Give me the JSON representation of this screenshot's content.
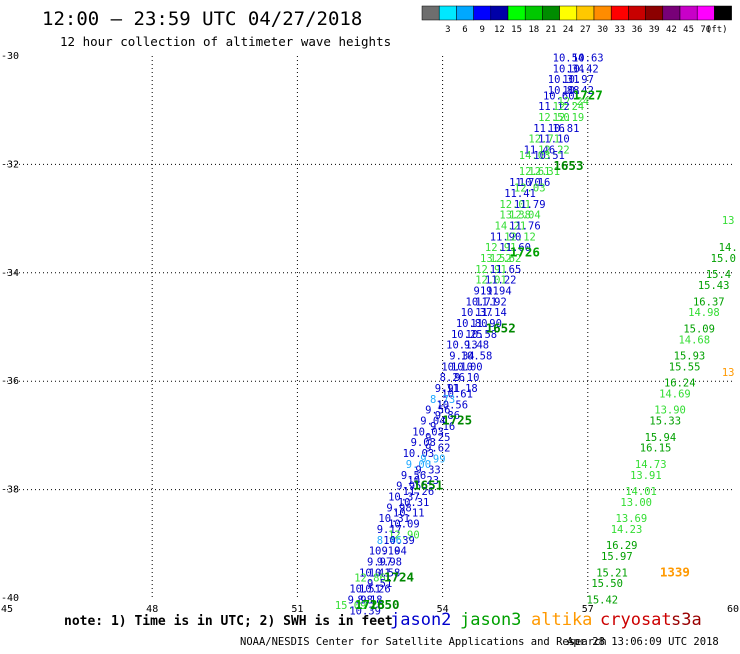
{
  "header": {
    "title": "12:00 – 23:59 UTC 04/27/2018",
    "subtitle": "12 hour collection of altimeter wave heights"
  },
  "color_scale": {
    "unit": "(ft)",
    "bins": [
      {
        "color": "#6e6e6e",
        "label": ""
      },
      {
        "color": "#00e8ff",
        "label": "3"
      },
      {
        "color": "#00a8ff",
        "label": "6"
      },
      {
        "color": "#0000ff",
        "label": "9"
      },
      {
        "color": "#0000a8",
        "label": "12"
      },
      {
        "color": "#00ff00",
        "label": "15"
      },
      {
        "color": "#00c800",
        "label": "18"
      },
      {
        "color": "#008c00",
        "label": "21"
      },
      {
        "color": "#ffff00",
        "label": "24"
      },
      {
        "color": "#ffc800",
        "label": "27"
      },
      {
        "color": "#ff8c00",
        "label": "30"
      },
      {
        "color": "#ff0000",
        "label": "33"
      },
      {
        "color": "#c80000",
        "label": "36"
      },
      {
        "color": "#8c0000",
        "label": "39"
      },
      {
        "color": "#780078",
        "label": "42"
      },
      {
        "color": "#c800c8",
        "label": "45"
      },
      {
        "color": "#ff00ff",
        "label": "70"
      },
      {
        "color": "#000000",
        "label": ""
      }
    ]
  },
  "footer": {
    "note": "note: 1) Time is in UTC; 2) SWH is in feet",
    "credit": "NOAA/NESDIS Center for Satellite Applications and Research",
    "timestamp": "Apr 28 13:06:09 UTC 2018"
  },
  "satellites": [
    {
      "name": "jason2",
      "color": "#0000cc"
    },
    {
      "name": "jason3",
      "color": "#00a000"
    },
    {
      "name": "altika",
      "color": "#ff9900"
    },
    {
      "name": "cryosat",
      "color": "#cc0000"
    },
    {
      "name": "s3a",
      "color": "#990000"
    }
  ],
  "chart_data": {
    "type": "scatter",
    "title": "12:00 – 23:59 UTC 04/27/2018",
    "subtitle": "12 hour collection of altimeter wave heights",
    "xlabel": "",
    "ylabel": "",
    "xlim": [
      45,
      60
    ],
    "ylim": [
      -40,
      -30
    ],
    "xticks": [
      45,
      48,
      51,
      54,
      57,
      60
    ],
    "yticks": [
      -30,
      -32,
      -34,
      -36,
      -38,
      -40
    ],
    "grid": true,
    "swh_labels": [
      {
        "lon": 56.6,
        "lat": -30.1,
        "text": "10.54",
        "color": "#0000cc"
      },
      {
        "lon": 57.0,
        "lat": -30.1,
        "text": "10.63",
        "color": "#0000cc"
      },
      {
        "lon": 56.6,
        "lat": -30.3,
        "text": "10.34",
        "color": "#0000cc"
      },
      {
        "lon": 56.9,
        "lat": -30.3,
        "text": "10.42",
        "color": "#0000cc"
      },
      {
        "lon": 56.5,
        "lat": -30.5,
        "text": "10.31",
        "color": "#0000cc"
      },
      {
        "lon": 56.8,
        "lat": -30.5,
        "text": "10.97",
        "color": "#0000cc"
      },
      {
        "lon": 56.5,
        "lat": -30.7,
        "text": "10.88",
        "color": "#0000cc"
      },
      {
        "lon": 56.8,
        "lat": -30.7,
        "text": "10.42",
        "color": "#0000cc"
      },
      {
        "lon": 56.4,
        "lat": -30.8,
        "text": "10.60",
        "color": "#0000cc"
      },
      {
        "lon": 56.7,
        "lat": -30.9,
        "text": "12.24",
        "color": "#33dd33"
      },
      {
        "lon": 56.3,
        "lat": -31.0,
        "text": "11.12",
        "color": "#0000cc"
      },
      {
        "lon": 56.6,
        "lat": -31.0,
        "text": "12.24",
        "color": "#33dd33"
      },
      {
        "lon": 56.3,
        "lat": -31.2,
        "text": "12.50",
        "color": "#33dd33"
      },
      {
        "lon": 56.6,
        "lat": -31.2,
        "text": "12.19",
        "color": "#33dd33"
      },
      {
        "lon": 56.2,
        "lat": -31.4,
        "text": "11.16",
        "color": "#0000cc"
      },
      {
        "lon": 56.5,
        "lat": -31.4,
        "text": "10.81",
        "color": "#0000cc"
      },
      {
        "lon": 56.1,
        "lat": -31.6,
        "text": "12.71",
        "color": "#33dd33"
      },
      {
        "lon": 56.3,
        "lat": -31.6,
        "text": "11.10",
        "color": "#0000cc"
      },
      {
        "lon": 56.0,
        "lat": -31.8,
        "text": "11.46",
        "color": "#0000cc"
      },
      {
        "lon": 56.3,
        "lat": -31.8,
        "text": "12.22",
        "color": "#33dd33"
      },
      {
        "lon": 55.9,
        "lat": -31.9,
        "text": "14.03",
        "color": "#33dd33"
      },
      {
        "lon": 56.2,
        "lat": -31.9,
        "text": "10.51",
        "color": "#0000cc"
      },
      {
        "lon": 55.9,
        "lat": -32.2,
        "text": "12.61",
        "color": "#33dd33"
      },
      {
        "lon": 56.1,
        "lat": -32.2,
        "text": "12.31",
        "color": "#33dd33"
      },
      {
        "lon": 55.7,
        "lat": -32.4,
        "text": "11.70",
        "color": "#0000cc"
      },
      {
        "lon": 55.9,
        "lat": -32.4,
        "text": "10.16",
        "color": "#0000cc"
      },
      {
        "lon": 55.6,
        "lat": -32.6,
        "text": "11.41",
        "color": "#0000cc"
      },
      {
        "lon": 55.8,
        "lat": -32.5,
        "text": "12.03",
        "color": "#33dd33"
      },
      {
        "lon": 55.5,
        "lat": -32.8,
        "text": "12.01",
        "color": "#33dd33"
      },
      {
        "lon": 55.8,
        "lat": -32.8,
        "text": "11.79",
        "color": "#0000cc"
      },
      {
        "lon": 55.5,
        "lat": -33.0,
        "text": "13.38",
        "color": "#33dd33"
      },
      {
        "lon": 55.7,
        "lat": -33.0,
        "text": "12.04",
        "color": "#33dd33"
      },
      {
        "lon": 55.4,
        "lat": -33.2,
        "text": "14.21",
        "color": "#33dd33"
      },
      {
        "lon": 55.7,
        "lat": -33.2,
        "text": "11.76",
        "color": "#0000cc"
      },
      {
        "lon": 55.3,
        "lat": -33.4,
        "text": "11.90",
        "color": "#0000cc"
      },
      {
        "lon": 55.6,
        "lat": -33.4,
        "text": "12.12",
        "color": "#33dd33"
      },
      {
        "lon": 55.2,
        "lat": -33.6,
        "text": "12.91",
        "color": "#33dd33"
      },
      {
        "lon": 55.5,
        "lat": -33.6,
        "text": "11.60",
        "color": "#0000cc"
      },
      {
        "lon": 55.1,
        "lat": -33.8,
        "text": "13.52",
        "color": "#33dd33"
      },
      {
        "lon": 55.3,
        "lat": -33.8,
        "text": "12.62",
        "color": "#33dd33"
      },
      {
        "lon": 55.0,
        "lat": -34.0,
        "text": "12.91",
        "color": "#33dd33"
      },
      {
        "lon": 55.3,
        "lat": -34.0,
        "text": "11.65",
        "color": "#0000cc"
      },
      {
        "lon": 55.0,
        "lat": -34.2,
        "text": "12.01",
        "color": "#33dd33"
      },
      {
        "lon": 55.2,
        "lat": -34.2,
        "text": "11.22",
        "color": "#0000cc"
      },
      {
        "lon": 54.9,
        "lat": -34.4,
        "text": "9.91",
        "color": "#0000cc"
      },
      {
        "lon": 55.1,
        "lat": -34.4,
        "text": "11.94",
        "color": "#0000cc"
      },
      {
        "lon": 54.8,
        "lat": -34.6,
        "text": "10.71",
        "color": "#0000cc"
      },
      {
        "lon": 55.0,
        "lat": -34.6,
        "text": "11.92",
        "color": "#0000cc"
      },
      {
        "lon": 54.7,
        "lat": -34.8,
        "text": "10.37",
        "color": "#0000cc"
      },
      {
        "lon": 55.0,
        "lat": -34.8,
        "text": "11.14",
        "color": "#0000cc"
      },
      {
        "lon": 54.6,
        "lat": -35.0,
        "text": "10.80",
        "color": "#0000cc"
      },
      {
        "lon": 54.9,
        "lat": -35.0,
        "text": "11.90",
        "color": "#0000cc"
      },
      {
        "lon": 54.5,
        "lat": -35.2,
        "text": "10.25",
        "color": "#0000cc"
      },
      {
        "lon": 54.8,
        "lat": -35.2,
        "text": "10.58",
        "color": "#0000cc"
      },
      {
        "lon": 54.4,
        "lat": -35.4,
        "text": "10.13",
        "color": "#0000cc"
      },
      {
        "lon": 54.7,
        "lat": -35.4,
        "text": "9.48",
        "color": "#0000cc"
      },
      {
        "lon": 54.4,
        "lat": -35.6,
        "text": "9.34",
        "color": "#0000cc"
      },
      {
        "lon": 54.7,
        "lat": -35.6,
        "text": "10.58",
        "color": "#0000cc"
      },
      {
        "lon": 54.3,
        "lat": -35.8,
        "text": "10.10",
        "color": "#0000cc"
      },
      {
        "lon": 54.5,
        "lat": -35.8,
        "text": "10.00",
        "color": "#0000cc"
      },
      {
        "lon": 54.2,
        "lat": -36.0,
        "text": "8.26",
        "color": "#0000cc"
      },
      {
        "lon": 54.5,
        "lat": -36.0,
        "text": "9.10",
        "color": "#0000cc"
      },
      {
        "lon": 54.1,
        "lat": -36.2,
        "text": "9.91",
        "color": "#0000cc"
      },
      {
        "lon": 54.4,
        "lat": -36.2,
        "text": "11.18",
        "color": "#0000cc"
      },
      {
        "lon": 54.3,
        "lat": -36.3,
        "text": "10.61",
        "color": "#0000cc"
      },
      {
        "lon": 54.0,
        "lat": -36.4,
        "text": "8.73",
        "color": "#22aaff"
      },
      {
        "lon": 54.2,
        "lat": -36.5,
        "text": "10.56",
        "color": "#0000cc"
      },
      {
        "lon": 53.9,
        "lat": -36.6,
        "text": "9.56",
        "color": "#0000cc"
      },
      {
        "lon": 54.1,
        "lat": -36.7,
        "text": "9.86",
        "color": "#0000cc"
      },
      {
        "lon": 53.8,
        "lat": -36.8,
        "text": "9.04",
        "color": "#0000cc"
      },
      {
        "lon": 54.0,
        "lat": -36.9,
        "text": "9.16",
        "color": "#0000cc"
      },
      {
        "lon": 53.7,
        "lat": -37.0,
        "text": "10.03",
        "color": "#0000cc"
      },
      {
        "lon": 53.9,
        "lat": -37.1,
        "text": "9.25",
        "color": "#0000cc"
      },
      {
        "lon": 53.6,
        "lat": -37.2,
        "text": "9.08",
        "color": "#0000cc"
      },
      {
        "lon": 53.9,
        "lat": -37.3,
        "text": "9.62",
        "color": "#0000cc"
      },
      {
        "lon": 53.5,
        "lat": -37.4,
        "text": "10.03",
        "color": "#0000cc"
      },
      {
        "lon": 53.8,
        "lat": -37.5,
        "text": "9.99",
        "color": "#22aaff"
      },
      {
        "lon": 53.5,
        "lat": -37.6,
        "text": "9.00",
        "color": "#22aaff"
      },
      {
        "lon": 53.7,
        "lat": -37.7,
        "text": "9.33",
        "color": "#0000cc"
      },
      {
        "lon": 53.4,
        "lat": -37.8,
        "text": "9.56",
        "color": "#0000cc"
      },
      {
        "lon": 53.6,
        "lat": -37.9,
        "text": "10.23",
        "color": "#0000cc"
      },
      {
        "lon": 53.3,
        "lat": -38.0,
        "text": "9.95",
        "color": "#0000cc"
      },
      {
        "lon": 53.5,
        "lat": -38.1,
        "text": "11.26",
        "color": "#0000cc"
      },
      {
        "lon": 53.2,
        "lat": -38.2,
        "text": "10.37",
        "color": "#0000cc"
      },
      {
        "lon": 53.4,
        "lat": -38.3,
        "text": "10.31",
        "color": "#0000cc"
      },
      {
        "lon": 53.1,
        "lat": -38.4,
        "text": "9.98",
        "color": "#0000cc"
      },
      {
        "lon": 53.3,
        "lat": -38.5,
        "text": "10.11",
        "color": "#0000cc"
      },
      {
        "lon": 53.0,
        "lat": -38.6,
        "text": "10.31",
        "color": "#0000cc"
      },
      {
        "lon": 53.2,
        "lat": -38.7,
        "text": "10.09",
        "color": "#0000cc"
      },
      {
        "lon": 52.9,
        "lat": -38.8,
        "text": "9.17",
        "color": "#0000cc"
      },
      {
        "lon": 53.2,
        "lat": -38.9,
        "text": "12.90",
        "color": "#33dd33"
      },
      {
        "lon": 52.9,
        "lat": -39.0,
        "text": "8.46",
        "color": "#22aaff"
      },
      {
        "lon": 53.1,
        "lat": -39.0,
        "text": "10.39",
        "color": "#0000cc"
      },
      {
        "lon": 52.8,
        "lat": -39.2,
        "text": "10.10",
        "color": "#0000cc"
      },
      {
        "lon": 53.0,
        "lat": -39.2,
        "text": "9.94",
        "color": "#0000cc"
      },
      {
        "lon": 52.7,
        "lat": -39.4,
        "text": "9.97",
        "color": "#0000cc"
      },
      {
        "lon": 52.9,
        "lat": -39.4,
        "text": "9.98",
        "color": "#0000cc"
      },
      {
        "lon": 52.6,
        "lat": -39.6,
        "text": "10.41",
        "color": "#0000cc"
      },
      {
        "lon": 52.8,
        "lat": -39.6,
        "text": "10.58",
        "color": "#0000cc"
      },
      {
        "lon": 52.5,
        "lat": -39.7,
        "text": "12.86",
        "color": "#33dd33"
      },
      {
        "lon": 52.7,
        "lat": -39.8,
        "text": "9.51",
        "color": "#0000cc"
      },
      {
        "lon": 52.4,
        "lat": -39.9,
        "text": "10.51",
        "color": "#0000cc"
      },
      {
        "lon": 52.6,
        "lat": -39.9,
        "text": "10.26",
        "color": "#0000cc"
      },
      {
        "lon": 52.3,
        "lat": -40.1,
        "text": "9.98",
        "color": "#0000cc"
      },
      {
        "lon": 52.5,
        "lat": -40.1,
        "text": "8.18",
        "color": "#0000cc"
      },
      {
        "lon": 52.1,
        "lat": -40.2,
        "text": "15.09",
        "color": "#33dd33"
      },
      {
        "lon": 52.4,
        "lat": -40.3,
        "text": "10.39",
        "color": "#0000cc"
      },
      {
        "lon": 59.9,
        "lat": -33.1,
        "text": "13",
        "color": "#33dd33"
      },
      {
        "lon": 59.9,
        "lat": -33.6,
        "text": "14.",
        "color": "#00a000"
      },
      {
        "lon": 59.8,
        "lat": -33.8,
        "text": "15.0",
        "color": "#00a000"
      },
      {
        "lon": 59.7,
        "lat": -34.1,
        "text": "15.4",
        "color": "#00a000"
      },
      {
        "lon": 59.6,
        "lat": -34.3,
        "text": "15.43",
        "color": "#00a000"
      },
      {
        "lon": 59.5,
        "lat": -34.6,
        "text": "16.37",
        "color": "#00a000"
      },
      {
        "lon": 59.4,
        "lat": -34.8,
        "text": "14.98",
        "color": "#33dd33"
      },
      {
        "lon": 59.3,
        "lat": -35.1,
        "text": "15.09",
        "color": "#00a000"
      },
      {
        "lon": 59.2,
        "lat": -35.3,
        "text": "14.68",
        "color": "#33dd33"
      },
      {
        "lon": 59.1,
        "lat": -35.6,
        "text": "15.93",
        "color": "#00a000"
      },
      {
        "lon": 59.0,
        "lat": -35.8,
        "text": "15.55",
        "color": "#00a000"
      },
      {
        "lon": 58.9,
        "lat": -36.1,
        "text": "16.24",
        "color": "#00a000"
      },
      {
        "lon": 58.8,
        "lat": -36.3,
        "text": "14.69",
        "color": "#33dd33"
      },
      {
        "lon": 58.7,
        "lat": -36.6,
        "text": "13.90",
        "color": "#33dd33"
      },
      {
        "lon": 58.6,
        "lat": -36.8,
        "text": "15.33",
        "color": "#00a000"
      },
      {
        "lon": 58.5,
        "lat": -37.1,
        "text": "15.94",
        "color": "#00a000"
      },
      {
        "lon": 58.4,
        "lat": -37.3,
        "text": "16.15",
        "color": "#00a000"
      },
      {
        "lon": 58.3,
        "lat": -37.6,
        "text": "14.73",
        "color": "#33dd33"
      },
      {
        "lon": 58.2,
        "lat": -37.8,
        "text": "13.91",
        "color": "#33dd33"
      },
      {
        "lon": 58.1,
        "lat": -38.1,
        "text": "14.01",
        "color": "#33dd33"
      },
      {
        "lon": 58.0,
        "lat": -38.3,
        "text": "13.00",
        "color": "#33dd33"
      },
      {
        "lon": 57.9,
        "lat": -38.6,
        "text": "13.69",
        "color": "#33dd33"
      },
      {
        "lon": 57.8,
        "lat": -38.8,
        "text": "14.23",
        "color": "#33dd33"
      },
      {
        "lon": 57.7,
        "lat": -39.1,
        "text": "16.29",
        "color": "#00a000"
      },
      {
        "lon": 57.6,
        "lat": -39.3,
        "text": "15.97",
        "color": "#00a000"
      },
      {
        "lon": 57.5,
        "lat": -39.6,
        "text": "15.21",
        "color": "#00a000"
      },
      {
        "lon": 57.4,
        "lat": -39.8,
        "text": "15.50",
        "color": "#00a000"
      },
      {
        "lon": 57.3,
        "lat": -40.1,
        "text": "15.42",
        "color": "#00a000"
      },
      {
        "lon": 59.9,
        "lat": -35.9,
        "text": "13",
        "color": "#ff9900"
      }
    ],
    "time_labels": [
      {
        "lon": 57.0,
        "lat": -30.8,
        "text": "1727",
        "color": "#00a000"
      },
      {
        "lon": 56.6,
        "lat": -32.1,
        "text": "1653",
        "color": "#008800"
      },
      {
        "lon": 55.7,
        "lat": -33.7,
        "text": "1726",
        "color": "#00a000"
      },
      {
        "lon": 55.2,
        "lat": -35.1,
        "text": "1652",
        "color": "#008800"
      },
      {
        "lon": 54.3,
        "lat": -36.8,
        "text": "1725",
        "color": "#008800"
      },
      {
        "lon": 53.7,
        "lat": -38.0,
        "text": "1651",
        "color": "#008800"
      },
      {
        "lon": 53.1,
        "lat": -39.7,
        "text": "1724",
        "color": "#008800"
      },
      {
        "lon": 52.5,
        "lat": -40.2,
        "text": "1723",
        "color": "#00a000"
      },
      {
        "lon": 52.8,
        "lat": -40.2,
        "text": "1650",
        "color": "#008800"
      },
      {
        "lon": 58.8,
        "lat": -39.6,
        "text": "1339",
        "color": "#ff9900"
      }
    ]
  }
}
